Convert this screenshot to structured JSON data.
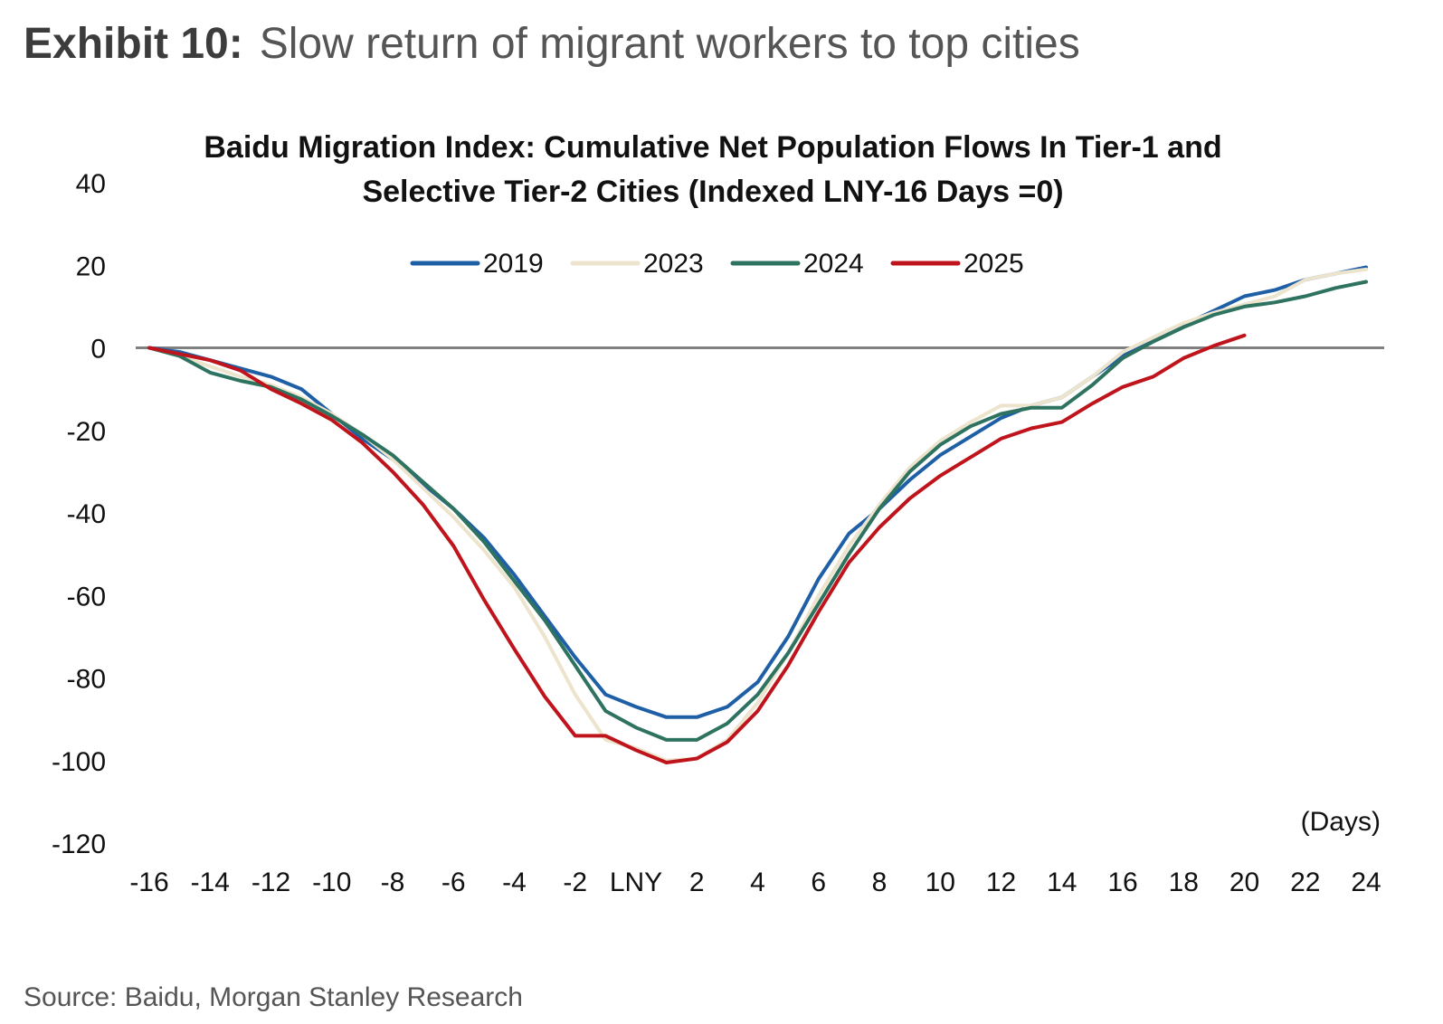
{
  "header": {
    "exhibit_label": "Exhibit 10:",
    "exhibit_title": "Slow return of migrant workers to top cities"
  },
  "source": "Source: Baidu, Morgan Stanley Research",
  "colors": {
    "2019": "#1f5fa6",
    "2023": "#ece4cc",
    "2024": "#2e7260",
    "2025": "#c0141c",
    "zero_line": "#808080",
    "text": "#111111"
  },
  "chart_data": {
    "type": "line",
    "title_line1": "Baidu Migration Index: Cumulative Net Population Flows In Tier-1 and",
    "title_line2": "Selective Tier-2 Cities (Indexed LNY-16 Days =0)",
    "xlabel": "(Days)",
    "ylabel": "",
    "xlim": [
      -16,
      24
    ],
    "ylim": [
      -120,
      40
    ],
    "x_ticks": [
      {
        "value": -16,
        "label": "-16"
      },
      {
        "value": -14,
        "label": "-14"
      },
      {
        "value": -12,
        "label": "-12"
      },
      {
        "value": -10,
        "label": "-10"
      },
      {
        "value": -8,
        "label": "-8"
      },
      {
        "value": -6,
        "label": "-6"
      },
      {
        "value": -4,
        "label": "-4"
      },
      {
        "value": -2,
        "label": "-2"
      },
      {
        "value": 0,
        "label": "LNY"
      },
      {
        "value": 2,
        "label": "2"
      },
      {
        "value": 4,
        "label": "4"
      },
      {
        "value": 6,
        "label": "6"
      },
      {
        "value": 8,
        "label": "8"
      },
      {
        "value": 10,
        "label": "10"
      },
      {
        "value": 12,
        "label": "12"
      },
      {
        "value": 14,
        "label": "14"
      },
      {
        "value": 16,
        "label": "16"
      },
      {
        "value": 18,
        "label": "18"
      },
      {
        "value": 20,
        "label": "20"
      },
      {
        "value": 22,
        "label": "22"
      },
      {
        "value": 24,
        "label": "24"
      }
    ],
    "y_ticks": [
      {
        "value": 40,
        "label": "40"
      },
      {
        "value": 20,
        "label": "20"
      },
      {
        "value": 0,
        "label": "0"
      },
      {
        "value": -20,
        "label": "-20"
      },
      {
        "value": -40,
        "label": "-40"
      },
      {
        "value": -60,
        "label": "-60"
      },
      {
        "value": -80,
        "label": "-80"
      },
      {
        "value": -100,
        "label": "-100"
      },
      {
        "value": -120,
        "label": "-120"
      }
    ],
    "grid": false,
    "zero_line": true,
    "legend_position": "top-center",
    "series": [
      {
        "name": "2019",
        "x": [
          -16,
          -15,
          -14,
          -13,
          -12,
          -11,
          -10,
          -9,
          -8,
          -7,
          -6,
          -5,
          -4,
          -3,
          -2,
          -1,
          0,
          1,
          2,
          3,
          4,
          5,
          6,
          7,
          8,
          9,
          10,
          11,
          12,
          13,
          14,
          15,
          16,
          17,
          18,
          19,
          20,
          21,
          22,
          23,
          24
        ],
        "values": [
          0,
          -1,
          -3,
          -5,
          -7,
          -10,
          -16,
          -22,
          -27,
          -33,
          -39,
          -46,
          -55,
          -65,
          -75,
          -84,
          -87,
          -89.5,
          -89.5,
          -87,
          -81,
          -70,
          -56,
          -45,
          -39,
          -32,
          -26,
          -21.5,
          -17,
          -14,
          -12,
          -7,
          -2,
          2,
          5.5,
          9,
          12.5,
          14,
          16.5,
          18,
          19.5
        ]
      },
      {
        "name": "2023",
        "x": [
          -16,
          -15,
          -14,
          -13,
          -12,
          -11,
          -10,
          -9,
          -8,
          -7,
          -6,
          -5,
          -4,
          -3,
          -2,
          -1,
          0,
          1,
          2,
          3,
          4,
          5,
          6,
          7,
          8,
          9,
          10,
          11,
          12,
          13,
          14,
          15,
          16,
          17,
          18,
          19,
          20,
          21,
          22,
          23,
          24
        ],
        "values": [
          0,
          -2,
          -4.5,
          -7,
          -9,
          -12,
          -16,
          -21,
          -27,
          -34,
          -41,
          -49,
          -58,
          -70,
          -84,
          -95,
          -97,
          -100,
          -99.5,
          -95,
          -86,
          -74,
          -60,
          -48,
          -38,
          -29,
          -22.5,
          -18,
          -14,
          -14,
          -12,
          -7,
          -1,
          2.5,
          6,
          8.5,
          10.5,
          12.5,
          16.5,
          18,
          19
        ]
      },
      {
        "name": "2024",
        "x": [
          -16,
          -15,
          -14,
          -13,
          -12,
          -11,
          -10,
          -9,
          -8,
          -7,
          -6,
          -5,
          -4,
          -3,
          -2,
          -1,
          0,
          1,
          2,
          3,
          4,
          5,
          6,
          7,
          8,
          9,
          10,
          11,
          12,
          13,
          14,
          15,
          16,
          17,
          18,
          19,
          20,
          21,
          22,
          23,
          24
        ],
        "values": [
          0,
          -2,
          -6,
          -8,
          -9.5,
          -12.5,
          -16.5,
          -21,
          -26,
          -32.5,
          -39,
          -47,
          -56.5,
          -66,
          -77,
          -88,
          -92,
          -95,
          -95,
          -91,
          -84,
          -74,
          -62,
          -50,
          -39,
          -30,
          -23.5,
          -19,
          -16,
          -14.5,
          -14.5,
          -9,
          -2.5,
          1.5,
          5,
          8,
          10,
          11,
          12.5,
          14.5,
          16
        ]
      },
      {
        "name": "2025",
        "x": [
          -16,
          -15,
          -14,
          -13,
          -12,
          -11,
          -10,
          -9,
          -8,
          -7,
          -6,
          -5,
          -4,
          -3,
          -2,
          -1,
          0,
          1,
          2,
          3,
          4,
          5,
          6,
          7,
          8,
          9,
          10,
          11,
          12,
          13,
          14,
          15,
          16,
          17,
          18,
          19,
          20
        ],
        "values": [
          0,
          -1.5,
          -3,
          -5.5,
          -10,
          -13.5,
          -17.5,
          -23,
          -30,
          -38,
          -48,
          -61,
          -73,
          -84.5,
          -94,
          -94,
          -97.5,
          -100.5,
          -99.5,
          -95.5,
          -88,
          -77,
          -64,
          -52,
          -43.5,
          -36.5,
          -31,
          -26.5,
          -22,
          -19.5,
          -18,
          -13.5,
          -9.5,
          -7,
          -2.5,
          0.5,
          3
        ]
      }
    ]
  }
}
